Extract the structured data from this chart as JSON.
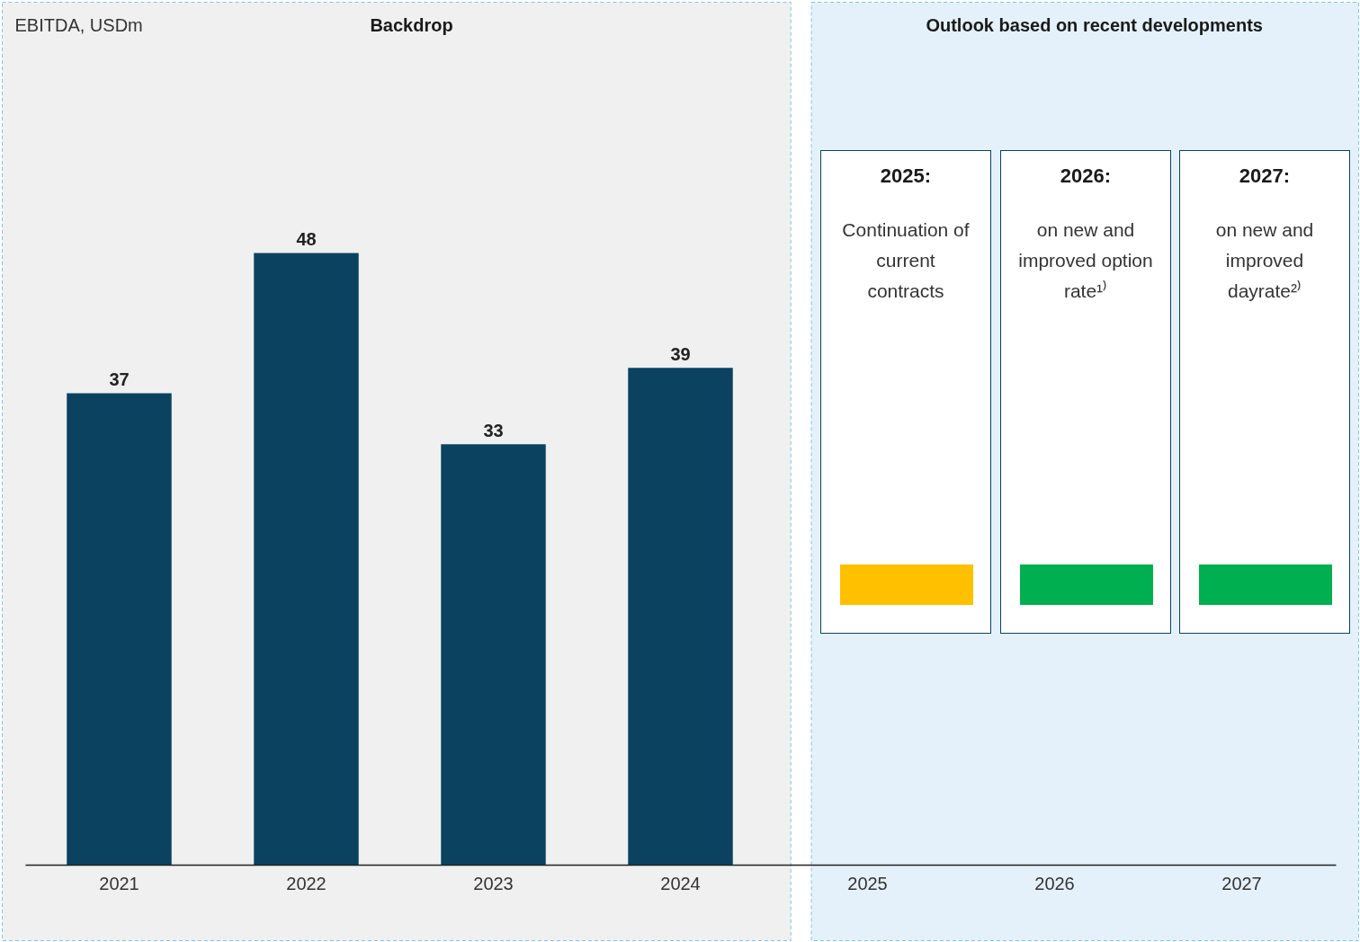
{
  "chart_data": {
    "type": "bar",
    "categories": [
      "2021",
      "2022",
      "2023",
      "2024",
      "2025",
      "2026",
      "2027"
    ],
    "values": [
      37,
      48,
      33,
      39,
      null,
      null,
      null
    ],
    "color": "#0b4260",
    "data_labels": true,
    "bands": [
      {
        "axis": "x",
        "from": "2021",
        "to": "2024",
        "label": "Backdrop",
        "color": "#f0f0f0"
      },
      {
        "axis": "x",
        "from": "2025",
        "to": "2027",
        "label": "Outlook based on recent developments",
        "color": "#e4f1fa"
      }
    ],
    "annotations": [
      "EBITDA, USDm",
      "2025:",
      "Continuation of current contracts",
      "2026:",
      "on new and improved option rate¹⁾",
      "2027:",
      "on new and improved dayrate²⁾"
    ]
  }
}
